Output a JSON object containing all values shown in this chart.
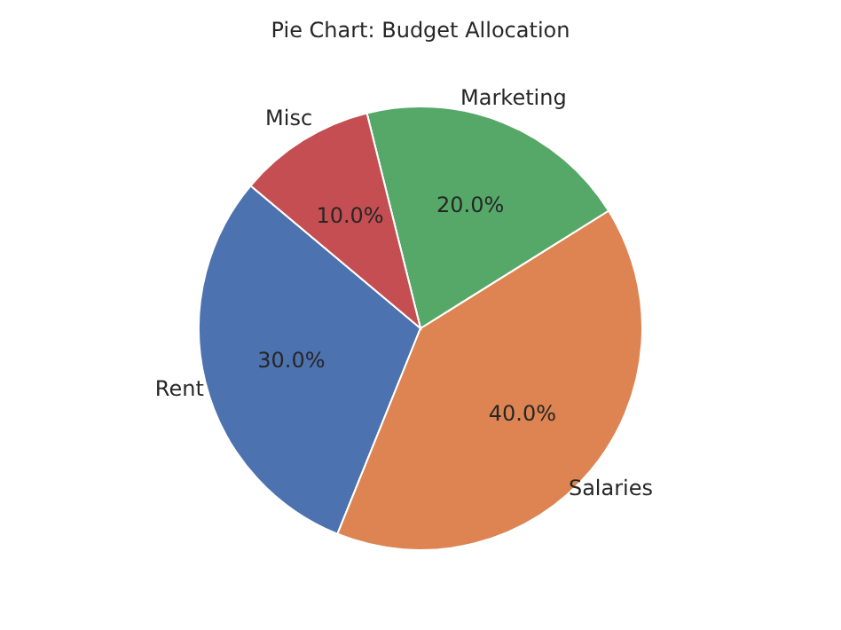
{
  "chart_data": {
    "type": "pie",
    "title": "Pie Chart: Budget Allocation",
    "categories": [
      "Rent",
      "Salaries",
      "Marketing",
      "Misc"
    ],
    "values": [
      30,
      40,
      20,
      10
    ],
    "colors": [
      "#4c72b0",
      "#dd8452",
      "#55a868",
      "#c44e52"
    ],
    "value_labels": [
      "30.0%",
      "40.0%",
      "20.0%",
      "10.0%"
    ],
    "legend": false
  }
}
